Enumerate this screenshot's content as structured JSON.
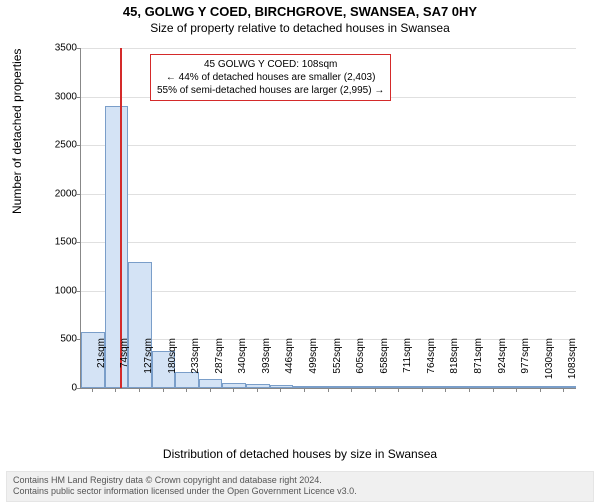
{
  "title": "45, GOLWG Y COED, BIRCHGROVE, SWANSEA, SA7 0HY",
  "subtitle": "Size of property relative to detached houses in Swansea",
  "yaxis_title": "Number of detached properties",
  "xaxis_title": "Distribution of detached houses by size in Swansea",
  "chart": {
    "type": "bar",
    "ylim": [
      0,
      3500
    ],
    "ytick_step": 500,
    "background_color": "#ffffff",
    "grid_color": "#e0e0e0",
    "bar_fill": "#d4e3f5",
    "bar_border": "#7a9ec9",
    "marker_color": "#d42a2a",
    "marker_x": 108,
    "x_categories": [
      "21sqm",
      "74sqm",
      "127sqm",
      "180sqm",
      "233sqm",
      "287sqm",
      "340sqm",
      "393sqm",
      "446sqm",
      "499sqm",
      "552sqm",
      "605sqm",
      "658sqm",
      "711sqm",
      "764sqm",
      "818sqm",
      "871sqm",
      "924sqm",
      "977sqm",
      "1030sqm",
      "1083sqm"
    ],
    "x_bin_width": 53,
    "x_min": 21,
    "x_max": 1083,
    "values": [
      580,
      2900,
      1300,
      380,
      170,
      95,
      50,
      45,
      30,
      22,
      25,
      15,
      15,
      8,
      12,
      6,
      5,
      5,
      4,
      3,
      3
    ]
  },
  "info_box": {
    "border_color": "#d42a2a",
    "line1": "45 GOLWG Y COED: 108sqm",
    "line2": "← 44% of detached houses are smaller (2,403)",
    "line3": "55% of semi-detached houses are larger (2,995) →"
  },
  "footer": {
    "line1": "Contains HM Land Registry data © Crown copyright and database right 2024.",
    "line2": "Contains public sector information licensed under the Open Government Licence v3.0."
  }
}
